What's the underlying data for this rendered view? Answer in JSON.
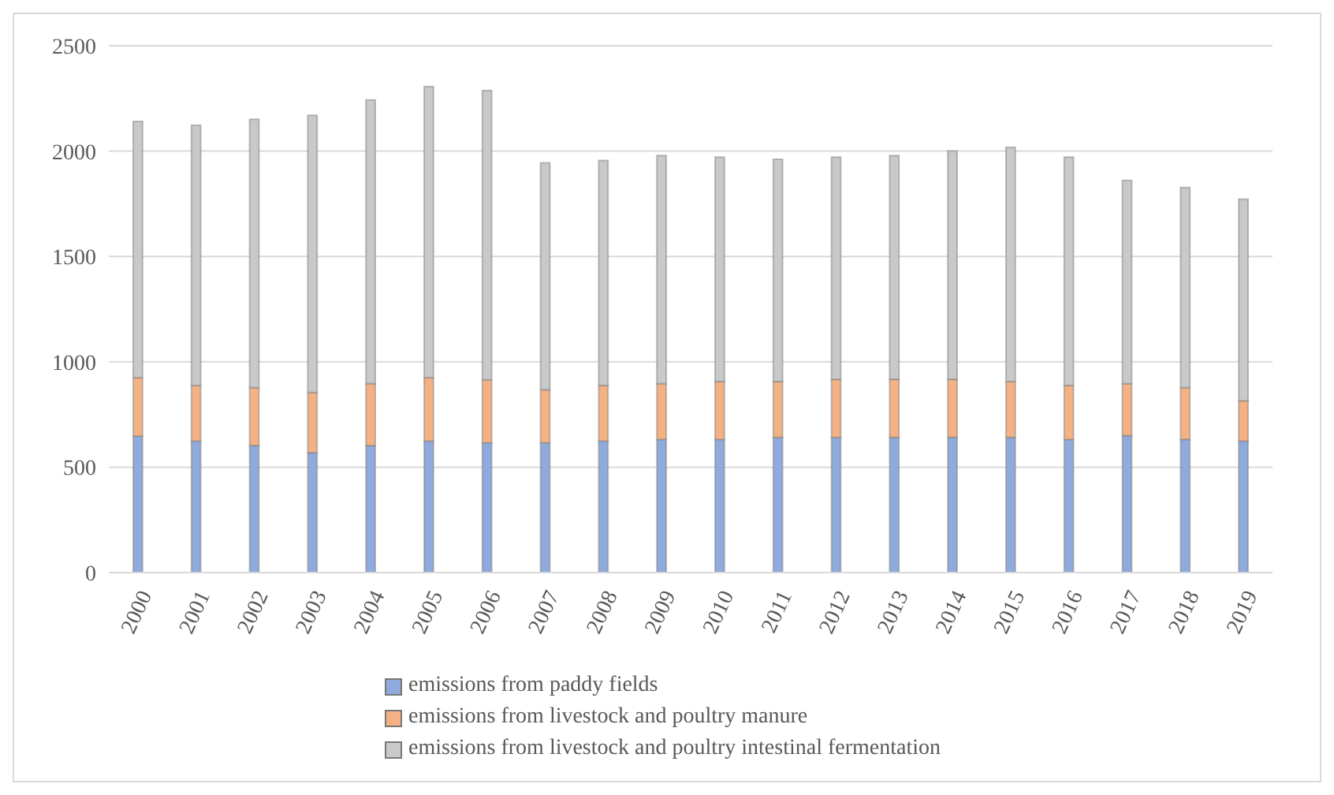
{
  "chart_data": {
    "type": "bar",
    "stacked": true,
    "categories": [
      "2000",
      "2001",
      "2002",
      "2003",
      "2004",
      "2005",
      "2006",
      "2007",
      "2008",
      "2009",
      "2010",
      "2011",
      "2012",
      "2013",
      "2014",
      "2015",
      "2016",
      "2017",
      "2018",
      "2019"
    ],
    "series": [
      {
        "name": "emissions from paddy fields",
        "color": "#8faadc",
        "values": [
          647,
          624,
          603,
          569,
          603,
          624,
          616,
          616,
          624,
          632,
          632,
          642,
          642,
          642,
          642,
          642,
          632,
          650,
          632,
          624
        ]
      },
      {
        "name": "emissions from livestock and poultry manure",
        "color": "#f4b183",
        "values": [
          278,
          264,
          275,
          285,
          293,
          301,
          299,
          251,
          264,
          264,
          275,
          265,
          275,
          275,
          275,
          265,
          256,
          246,
          246,
          191
        ]
      },
      {
        "name": "emissions from livestock and poultry intestinal fermentation",
        "color": "#c9c9c9",
        "values": [
          1216,
          1235,
          1273,
          1316,
          1347,
          1381,
          1373,
          1077,
          1067,
          1083,
          1064,
          1054,
          1054,
          1062,
          1083,
          1111,
          1083,
          965,
          949,
          957
        ]
      }
    ],
    "ylim": [
      0,
      2500
    ],
    "yticks": [
      0,
      500,
      1000,
      1500,
      2000,
      2500
    ],
    "grid": "y",
    "legend": "bottom"
  }
}
